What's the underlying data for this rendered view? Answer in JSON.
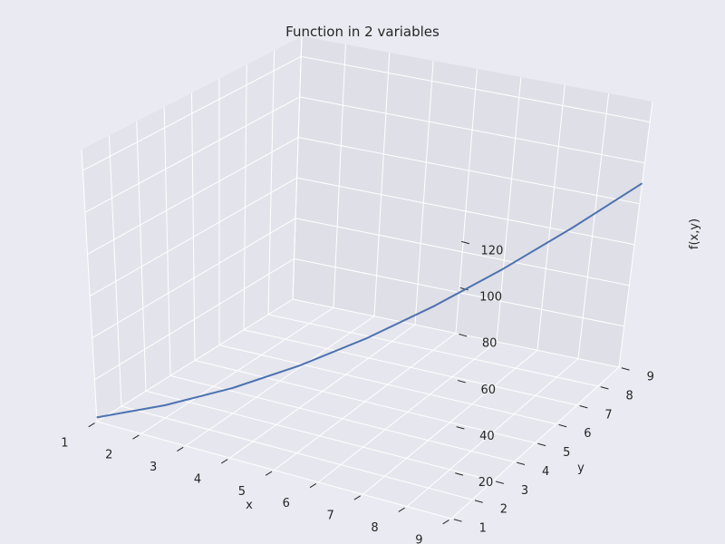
{
  "colors": {
    "background": "#eaeaf2",
    "pane_left": "#e3e3eb",
    "pane_right": "#dfdfe7",
    "pane_floor": "#e6e6ee",
    "grid": "#ffffff",
    "line": "#4c72b0",
    "text": "#262626"
  },
  "chart_data": {
    "type": "line",
    "projection": "3d",
    "title": "Function in 2 variables",
    "xlabel": "x",
    "ylabel": "y",
    "zlabel": "f(x,y)",
    "xlim": [
      1,
      9
    ],
    "ylim": [
      1,
      9
    ],
    "zlim": [
      0,
      130
    ],
    "xticks": [
      "1",
      "2",
      "3",
      "4",
      "5",
      "6",
      "7",
      "8",
      "9"
    ],
    "yticks": [
      "1",
      "2",
      "3",
      "4",
      "5",
      "6",
      "7",
      "8",
      "9"
    ],
    "zticks": [
      "20",
      "40",
      "60",
      "80",
      "100",
      "120"
    ],
    "grid": true,
    "series": [
      {
        "x": [
          1,
          2,
          3,
          4,
          5,
          6,
          7,
          8,
          9
        ],
        "y": [
          1,
          2,
          3,
          4,
          5,
          6,
          7,
          8,
          9
        ],
        "z": [
          2,
          6,
          12,
          20,
          30,
          42,
          56,
          72,
          90
        ]
      }
    ]
  }
}
